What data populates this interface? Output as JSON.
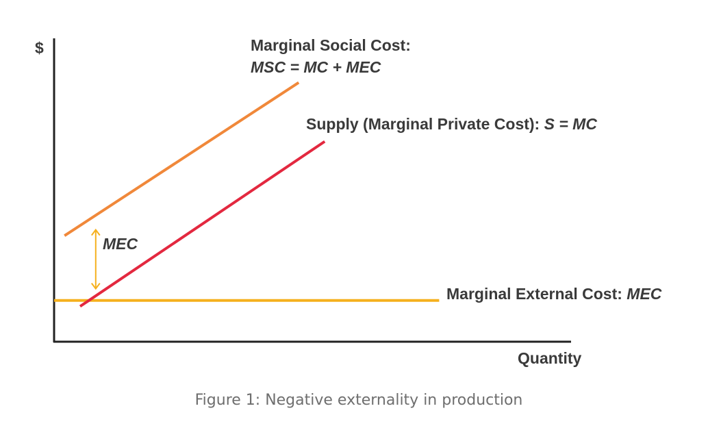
{
  "chart_data": {
    "type": "line",
    "ylabel": "$",
    "xlabel": "Quantity",
    "caption": "Figure 1: Negative externality in production",
    "grid": false,
    "xlim": [
      0,
      100
    ],
    "ylim": [
      0,
      100
    ],
    "series": [
      {
        "key": "msc",
        "label_line1": "Marginal Social Cost:",
        "label_line2": "MSC = MC + MEC",
        "color": "#f0883a",
        "x": [
          2,
          47
        ],
        "y": [
          36,
          88
        ]
      },
      {
        "key": "supply",
        "label_prefix": "Supply (Marginal Private Cost): ",
        "label_formula": "S = MC",
        "color": "#e3283f",
        "x": [
          5,
          52
        ],
        "y": [
          12,
          68
        ]
      },
      {
        "key": "mec",
        "label_prefix": "Marginal External Cost: ",
        "label_formula": "MEC",
        "color": "#f5b01e",
        "x": [
          0,
          74
        ],
        "y": [
          14,
          14
        ]
      }
    ],
    "annotation": {
      "text": "MEC",
      "color": "#f5b01e",
      "x": 8,
      "y_top": 38,
      "y_bottom": 18
    }
  }
}
